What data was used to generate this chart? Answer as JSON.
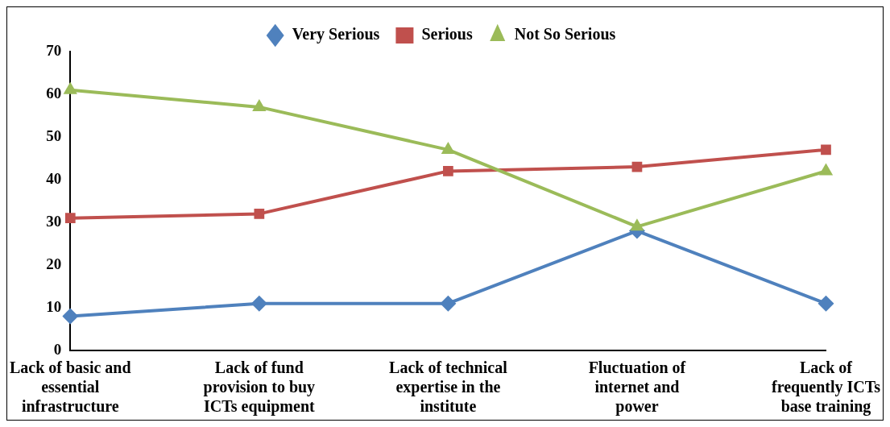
{
  "chart_data": {
    "type": "line",
    "categories": [
      "Lack of basic and essential infrastructure",
      "Lack of fund provision to buy ICTs equipment",
      "Lack of technical expertise in the institute",
      "Fluctuation of internet and power",
      "Lack of frequently ICTs base training"
    ],
    "series": [
      {
        "name": "Very Serious",
        "color": "#4f81bd",
        "marker": "diamond",
        "values": [
          8,
          11,
          11,
          28,
          11
        ]
      },
      {
        "name": "Serious",
        "color": "#c0504d",
        "marker": "square",
        "values": [
          31,
          32,
          42,
          43,
          47
        ]
      },
      {
        "name": "Not So Serious",
        "color": "#9bbb59",
        "marker": "triangle",
        "values": [
          61,
          57,
          47,
          29,
          42
        ]
      }
    ],
    "ylim": [
      0,
      70
    ],
    "yticks": [
      0,
      10,
      20,
      30,
      40,
      50,
      60,
      70
    ],
    "grid": false,
    "legend": "top"
  }
}
